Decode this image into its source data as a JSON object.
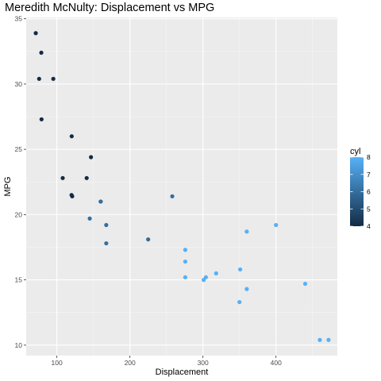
{
  "chart_data": {
    "type": "scatter",
    "title": "Meredith McNulty: Displacement vs MPG",
    "xlabel": "Displacement",
    "ylabel": "MPG",
    "xlim": [
      58,
      484
    ],
    "ylim": [
      9.2,
      35.1
    ],
    "x_ticks": [
      100,
      200,
      300,
      400
    ],
    "y_ticks": [
      10,
      15,
      20,
      25,
      30,
      35
    ],
    "grid": true,
    "color_variable": "cyl",
    "legend": {
      "title": "cyl",
      "type": "colorbar",
      "range": [
        4,
        8
      ],
      "ticks": [
        4,
        5,
        6,
        7,
        8
      ],
      "low_color": "#132b43",
      "high_color": "#56b1f7",
      "placement": "right"
    },
    "points": [
      {
        "x": 160,
        "y": 21.0,
        "cyl": 6
      },
      {
        "x": 160,
        "y": 21.0,
        "cyl": 6
      },
      {
        "x": 108,
        "y": 22.8,
        "cyl": 4
      },
      {
        "x": 258,
        "y": 21.4,
        "cyl": 6
      },
      {
        "x": 360,
        "y": 18.7,
        "cyl": 8
      },
      {
        "x": 225,
        "y": 18.1,
        "cyl": 6
      },
      {
        "x": 360,
        "y": 14.3,
        "cyl": 8
      },
      {
        "x": 146.7,
        "y": 24.4,
        "cyl": 4
      },
      {
        "x": 140.8,
        "y": 22.8,
        "cyl": 4
      },
      {
        "x": 167.6,
        "y": 19.2,
        "cyl": 6
      },
      {
        "x": 167.6,
        "y": 17.8,
        "cyl": 6
      },
      {
        "x": 275.8,
        "y": 16.4,
        "cyl": 8
      },
      {
        "x": 275.8,
        "y": 17.3,
        "cyl": 8
      },
      {
        "x": 275.8,
        "y": 15.2,
        "cyl": 8
      },
      {
        "x": 472,
        "y": 10.4,
        "cyl": 8
      },
      {
        "x": 460,
        "y": 10.4,
        "cyl": 8
      },
      {
        "x": 440,
        "y": 14.7,
        "cyl": 8
      },
      {
        "x": 78.7,
        "y": 32.4,
        "cyl": 4
      },
      {
        "x": 75.7,
        "y": 30.4,
        "cyl": 4
      },
      {
        "x": 71.1,
        "y": 33.9,
        "cyl": 4
      },
      {
        "x": 120.1,
        "y": 21.5,
        "cyl": 4
      },
      {
        "x": 318,
        "y": 15.5,
        "cyl": 8
      },
      {
        "x": 304,
        "y": 15.2,
        "cyl": 8
      },
      {
        "x": 350,
        "y": 13.3,
        "cyl": 8
      },
      {
        "x": 400,
        "y": 19.2,
        "cyl": 8
      },
      {
        "x": 79,
        "y": 27.3,
        "cyl": 4
      },
      {
        "x": 120.3,
        "y": 26.0,
        "cyl": 4
      },
      {
        "x": 95.1,
        "y": 30.4,
        "cyl": 4
      },
      {
        "x": 351,
        "y": 15.8,
        "cyl": 8
      },
      {
        "x": 145,
        "y": 19.7,
        "cyl": 6
      },
      {
        "x": 301,
        "y": 15.0,
        "cyl": 8
      },
      {
        "x": 121,
        "y": 21.4,
        "cyl": 4
      }
    ]
  }
}
